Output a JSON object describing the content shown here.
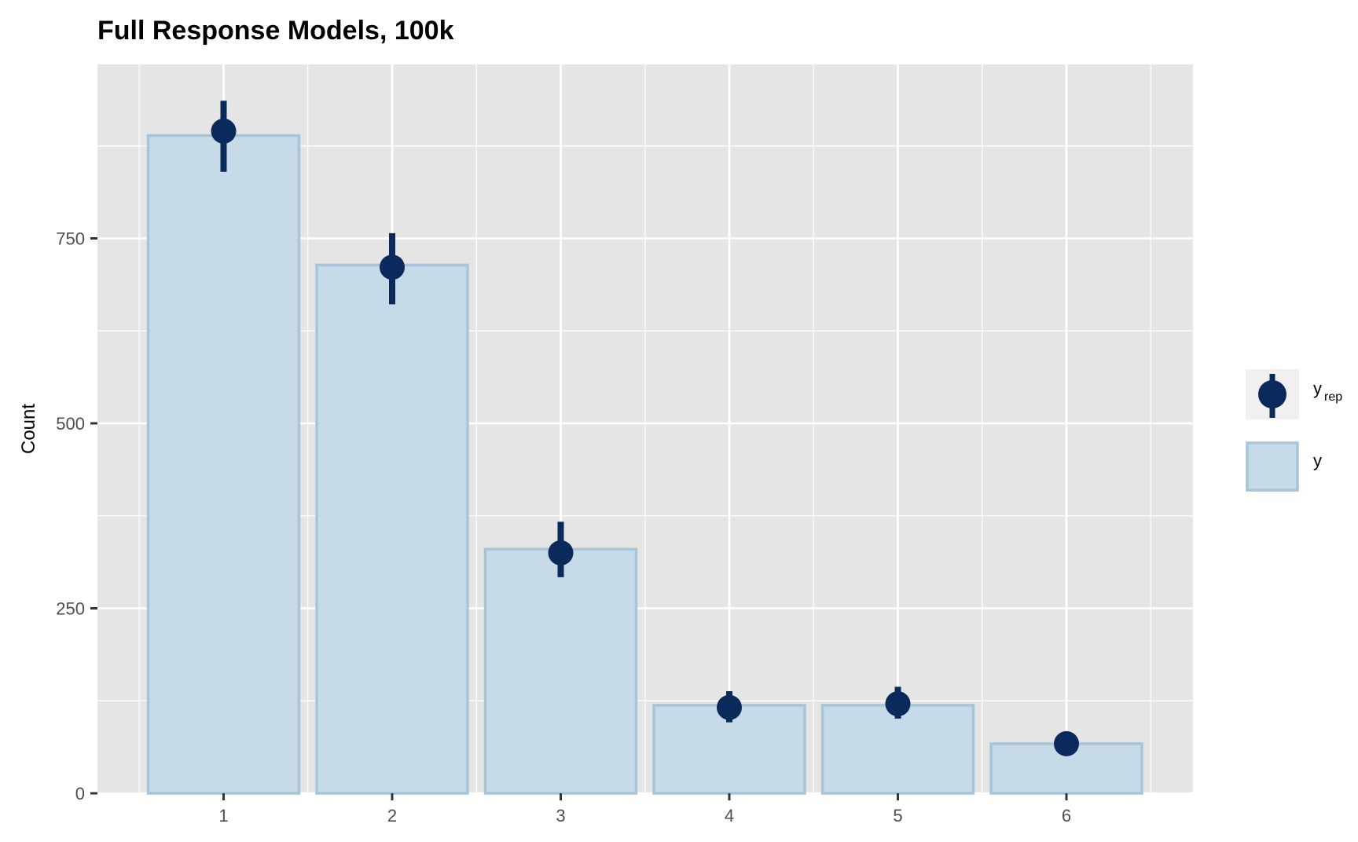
{
  "chart_data": {
    "type": "bar",
    "title": "Full Response Models, 100k",
    "xlabel": "",
    "ylabel": "Count",
    "categories": [
      "1",
      "2",
      "3",
      "4",
      "5",
      "6"
    ],
    "ylim": [
      0,
      1000
    ],
    "yticks": [
      0,
      250,
      500,
      750
    ],
    "grid": true,
    "legend_position": "right",
    "series": [
      {
        "name": "y",
        "kind": "bar",
        "values": [
          889,
          714,
          330,
          119,
          119,
          67
        ]
      },
      {
        "name": "y_rep",
        "kind": "pointrange",
        "values": [
          895,
          711,
          325,
          116,
          121,
          67
        ],
        "lower": [
          840,
          661,
          292,
          96,
          101,
          52
        ],
        "upper": [
          936,
          757,
          367,
          138,
          144,
          78
        ]
      }
    ],
    "legend": [
      {
        "symbol": "pointrange",
        "label": "y",
        "subscript": "rep"
      },
      {
        "symbol": "bar",
        "label": "y",
        "subscript": ""
      }
    ],
    "colors": {
      "bar_fill": "#c6dae8",
      "bar_stroke": "#a8c4d9",
      "point": "#0b2a5c",
      "panel_bg": "#e5e5e5",
      "grid": "#ffffff"
    }
  }
}
